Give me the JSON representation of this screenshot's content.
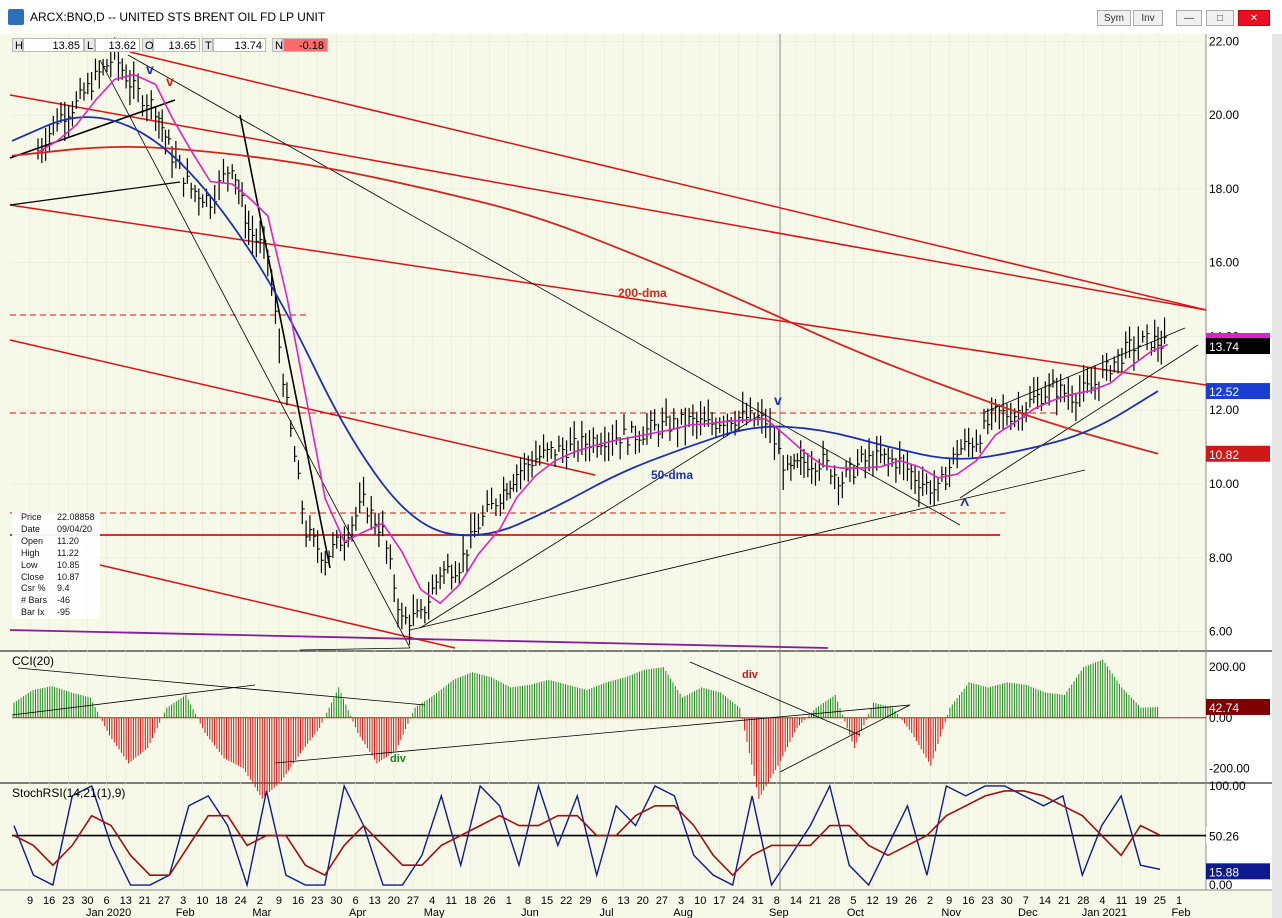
{
  "window": {
    "title": "ARCX:BNO,D -- UNITED STS BRENT OIL FD LP UNIT",
    "buttons": [
      "Sym",
      "Inv"
    ]
  },
  "ohlc_bar": [
    {
      "key": "H",
      "value": "13.85"
    },
    {
      "key": "L",
      "value": "13.62"
    },
    {
      "key": "O",
      "value": "13.65"
    },
    {
      "key": "T",
      "value": "13.74"
    },
    {
      "key": "N",
      "value": "-0.18"
    }
  ],
  "info_panel": [
    {
      "key": "Price",
      "value": "22.08858"
    },
    {
      "key": "Date",
      "value": "09/04/20"
    },
    {
      "key": "Open",
      "value": "11.20"
    },
    {
      "key": "High",
      "value": "11.22"
    },
    {
      "key": "Low",
      "value": "10.85"
    },
    {
      "key": "Close",
      "value": "10.87"
    },
    {
      "key": "Csr %",
      "value": "9.4"
    },
    {
      "key": "# Bars",
      "value": "-46"
    },
    {
      "key": "Bar Ix",
      "value": "-95"
    }
  ],
  "colors": {
    "background": "#f6f9e8",
    "price_bars": "#000000",
    "ma_200": "#d8231c",
    "ma_50": "#1b2fb5",
    "ma_short": "#e020c8",
    "channel": "#e01010",
    "cci_pos": "#1a8a1a",
    "cci_neg": "#d01818",
    "stoch_fast": "#101a90",
    "stoch_slow": "#a01010",
    "badge_price": "#000000",
    "badge_50": "#1a3fd0",
    "badge_200": "#d01818",
    "badge_cci": "#800000",
    "badge_stoch_slow": "#800000",
    "badge_stoch_fast": "#101a90"
  },
  "chart_data": [
    {
      "type": "candlestick",
      "panel": "price",
      "title": "ARCX:BNO,D -- UNITED STS BRENT OIL FD LP UNIT",
      "ylim": [
        5.5,
        22.2
      ],
      "yticks": [
        "22.00",
        "20.00",
        "18.00",
        "16.00",
        "14.00",
        "12.00",
        "10.00",
        "8.00",
        "6.00"
      ],
      "ytick_values": [
        22,
        20,
        18,
        16,
        14,
        12,
        10,
        8,
        6
      ],
      "x_labels": [
        "9",
        "16",
        "23",
        "30",
        "6",
        "13",
        "21",
        "27",
        "3",
        "10",
        "18",
        "24",
        "2",
        "9",
        "16",
        "23",
        "30",
        "6",
        "13",
        "20",
        "27",
        "4",
        "11",
        "18",
        "26",
        "1",
        "8",
        "15",
        "22",
        "29",
        "6",
        "13",
        "20",
        "27",
        "3",
        "10",
        "17",
        "24",
        "31",
        "8",
        "14",
        "21",
        "28",
        "5",
        "12",
        "19",
        "26",
        "2",
        "9",
        "16",
        "23",
        "30",
        "7",
        "14",
        "21",
        "28",
        "4",
        "11",
        "19",
        "25",
        "1"
      ],
      "month_labels": [
        "Jan 2020",
        "Feb",
        "Mar",
        "Apr",
        "May",
        "Jun",
        "Jul",
        "Aug",
        "Sep",
        "Oct",
        "Nov",
        "Dec",
        "Jan 2021",
        "Feb"
      ],
      "close_path": [
        [
          "2019-12-09",
          19.0
        ],
        [
          "2019-12-16",
          19.9
        ],
        [
          "2019-12-23",
          20.3
        ],
        [
          "2019-12-30",
          21.0
        ],
        [
          "2020-01-06",
          21.6
        ],
        [
          "2020-01-13",
          20.7
        ],
        [
          "2020-01-21",
          20.2
        ],
        [
          "2020-01-27",
          18.9
        ],
        [
          "2020-02-03",
          18.0
        ],
        [
          "2020-02-10",
          17.7
        ],
        [
          "2020-02-18",
          18.7
        ],
        [
          "2020-02-24",
          16.9
        ],
        [
          "2020-03-02",
          16.2
        ],
        [
          "2020-03-09",
          12.1
        ],
        [
          "2020-03-16",
          8.7
        ],
        [
          "2020-03-23",
          8.0
        ],
        [
          "2020-03-30",
          8.6
        ],
        [
          "2020-04-06",
          9.5
        ],
        [
          "2020-04-13",
          8.7
        ],
        [
          "2020-04-20",
          6.3
        ],
        [
          "2020-04-27",
          6.4
        ],
        [
          "2020-05-04",
          7.6
        ],
        [
          "2020-05-11",
          7.8
        ],
        [
          "2020-05-18",
          8.9
        ],
        [
          "2020-05-26",
          9.7
        ],
        [
          "2020-06-01",
          10.3
        ],
        [
          "2020-06-08",
          10.7
        ],
        [
          "2020-06-15",
          10.9
        ],
        [
          "2020-06-22",
          11.0
        ],
        [
          "2020-06-29",
          11.2
        ],
        [
          "2020-07-06",
          11.3
        ],
        [
          "2020-07-13",
          11.3
        ],
        [
          "2020-07-20",
          11.5
        ],
        [
          "2020-07-27",
          11.6
        ],
        [
          "2020-08-03",
          11.7
        ],
        [
          "2020-08-10",
          11.6
        ],
        [
          "2020-08-17",
          11.8
        ],
        [
          "2020-08-24",
          11.8
        ],
        [
          "2020-08-31",
          11.7
        ],
        [
          "2020-09-08",
          10.3
        ],
        [
          "2020-09-14",
          10.6
        ],
        [
          "2020-09-21",
          10.6
        ],
        [
          "2020-09-28",
          10.1
        ],
        [
          "2020-10-05",
          10.6
        ],
        [
          "2020-10-12",
          10.7
        ],
        [
          "2020-10-19",
          10.6
        ],
        [
          "2020-10-26",
          10.1
        ],
        [
          "2020-11-02",
          9.8
        ],
        [
          "2020-11-09",
          10.9
        ],
        [
          "2020-11-16",
          11.2
        ],
        [
          "2020-11-23",
          11.9
        ],
        [
          "2020-11-30",
          11.9
        ],
        [
          "2020-12-07",
          12.3
        ],
        [
          "2020-12-14",
          12.6
        ],
        [
          "2020-12-21",
          12.4
        ],
        [
          "2020-12-28",
          12.6
        ],
        [
          "2021-01-04",
          13.2
        ],
        [
          "2021-01-11",
          13.7
        ],
        [
          "2021-01-19",
          13.9
        ],
        [
          "2021-01-25",
          13.74
        ]
      ],
      "ma_200dma_path": [
        18.9,
        19.2,
        19.0,
        18.6,
        18.0,
        17.3,
        16.2,
        15.0,
        13.7,
        12.6,
        11.6,
        10.82
      ],
      "ma_50dma_path": [
        19.3,
        20.1,
        19.6,
        17.8,
        15.0,
        11.2,
        8.8,
        8.5,
        9.3,
        10.3,
        11.0,
        11.6,
        11.5,
        11.0,
        10.6,
        10.9,
        11.4,
        12.52
      ],
      "annotations": [
        "200-dma",
        "50-dma",
        "v",
        "v",
        "v",
        "^"
      ],
      "badges": {
        "last_price": "13.74",
        "ma_50": "12.52",
        "ma_200": "10.82"
      }
    },
    {
      "type": "bar",
      "panel": "cci",
      "title": "CCI(20)",
      "ylim": [
        -250,
        260
      ],
      "yticks": [
        "200.00",
        "0.00",
        "-200.00"
      ],
      "ytick_values": [
        200,
        0,
        -200
      ],
      "annotations": [
        "div",
        "div"
      ],
      "last_value": "42.74",
      "values": [
        60,
        110,
        125,
        100,
        80,
        -70,
        -180,
        -120,
        40,
        90,
        -60,
        -160,
        -200,
        -320,
        -250,
        -140,
        -40,
        120,
        -60,
        -180,
        -130,
        40,
        90,
        150,
        180,
        160,
        120,
        130,
        150,
        130,
        110,
        140,
        160,
        190,
        200,
        80,
        120,
        100,
        40,
        -320,
        -190,
        -40,
        40,
        90,
        -120,
        60,
        40,
        -60,
        -190,
        40,
        140,
        120,
        140,
        130,
        100,
        90,
        200,
        230,
        120,
        40,
        42.74
      ]
    },
    {
      "type": "line",
      "panel": "stochrsi",
      "title": "StochRSI(14,21(1),9)",
      "ylim": [
        -5,
        102
      ],
      "yticks": [
        "100.00",
        "50.26",
        "0.00"
      ],
      "ytick_values": [
        100,
        50,
        0
      ],
      "last_values": {
        "slow": "50.26",
        "fast": "15.88"
      },
      "series": [
        {
          "name": "fast",
          "values": [
            60,
            10,
            0,
            90,
            100,
            40,
            0,
            0,
            10,
            80,
            90,
            60,
            0,
            95,
            10,
            0,
            0,
            100,
            60,
            0,
            0,
            30,
            90,
            20,
            100,
            80,
            20,
            100,
            40,
            90,
            10,
            80,
            60,
            100,
            90,
            30,
            10,
            0,
            90,
            0,
            30,
            60,
            100,
            20,
            0,
            40,
            80,
            10,
            100,
            90,
            100,
            100,
            90,
            80,
            90,
            10,
            60,
            90,
            20,
            15.88
          ]
        },
        {
          "name": "slow",
          "values": [
            50,
            40,
            20,
            40,
            70,
            60,
            30,
            10,
            10,
            40,
            70,
            70,
            40,
            50,
            50,
            20,
            10,
            40,
            60,
            40,
            20,
            20,
            40,
            50,
            60,
            70,
            60,
            60,
            70,
            70,
            50,
            50,
            70,
            80,
            80,
            60,
            30,
            10,
            30,
            40,
            40,
            40,
            60,
            60,
            40,
            30,
            40,
            50,
            70,
            80,
            90,
            95,
            95,
            90,
            80,
            70,
            50,
            30,
            60,
            50.26
          ]
        }
      ]
    }
  ]
}
